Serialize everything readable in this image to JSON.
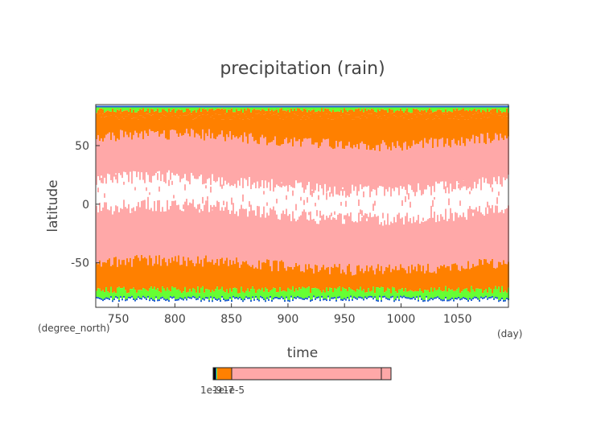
{
  "chart_data": {
    "type": "heatmap",
    "title": "precipitation (rain)",
    "xlabel": "time",
    "ylabel": "latitude",
    "x_units": "(day)",
    "y_units": "(degree_north)",
    "xlim": [
      730,
      1095
    ],
    "ylim": [
      -88,
      85
    ],
    "x_ticks": [
      750,
      800,
      850,
      900,
      950,
      1000,
      1050
    ],
    "y_ticks": [
      -50,
      0,
      50
    ],
    "grid": false,
    "colorbar": {
      "orientation": "horizontal",
      "tick_labels": [
        "1e-9",
        "1e-7",
        "1e-5"
      ],
      "colors": [
        "#000000",
        "#1f5fd0",
        "#33cc99",
        "#66ff33",
        "#ff8000",
        "#ffa8a8"
      ]
    },
    "bands": {
      "white_center_lat": 5,
      "white_half_width": 12,
      "pink_outer_lat_north": 55,
      "pink_outer_lat_south": -52,
      "orange_outer_lat_north": 75,
      "orange_outer_lat_south": -73,
      "green_outer_lat_north": 80,
      "green_outer_lat_south": -80
    }
  }
}
